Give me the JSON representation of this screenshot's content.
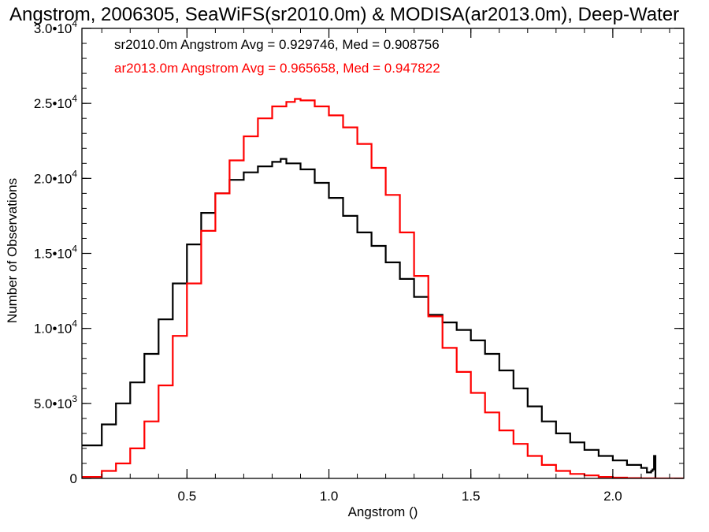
{
  "chart_data": {
    "type": "line",
    "title": "Angstrom, 2006305, SeaWiFS(sr2010.0m) & MODISA(ar2013.0m), Deep-Water",
    "xlabel": "Angstrom ()",
    "ylabel": "Number of Observations",
    "xlim": [
      0.13,
      2.25
    ],
    "ylim": [
      0,
      30000
    ],
    "x_ticks": [
      {
        "value": 0.5,
        "label": "0.5"
      },
      {
        "value": 1.0,
        "label": "1.0"
      },
      {
        "value": 1.5,
        "label": "1.5"
      },
      {
        "value": 2.0,
        "label": "2.0"
      }
    ],
    "y_ticks": [
      {
        "value": 0,
        "mantissa": "0",
        "exponent": ""
      },
      {
        "value": 5000,
        "mantissa": "5.0•10",
        "exponent": "3"
      },
      {
        "value": 10000,
        "mantissa": "1.0•10",
        "exponent": "4"
      },
      {
        "value": 15000,
        "mantissa": "1.5•10",
        "exponent": "4"
      },
      {
        "value": 20000,
        "mantissa": "2.0•10",
        "exponent": "4"
      },
      {
        "value": 25000,
        "mantissa": "2.5•10",
        "exponent": "4"
      },
      {
        "value": 30000,
        "mantissa": "3.0•10",
        "exponent": "4"
      }
    ],
    "annotations": [
      {
        "text": "sr2010.0m Angstrom Avg = 0.929746, Med = 0.908756",
        "color": "#000000"
      },
      {
        "text": "ar2013.0m Angstrom Avg = 0.965658, Med = 0.947822",
        "color": "#ff0000"
      }
    ],
    "series": [
      {
        "color": "#000000",
        "style": "step",
        "x": [
          0.13,
          0.2,
          0.25,
          0.3,
          0.35,
          0.4,
          0.45,
          0.5,
          0.55,
          0.6,
          0.65,
          0.7,
          0.75,
          0.8,
          0.83,
          0.85,
          0.9,
          0.95,
          1.0,
          1.05,
          1.1,
          1.15,
          1.2,
          1.25,
          1.3,
          1.35,
          1.4,
          1.45,
          1.5,
          1.55,
          1.6,
          1.65,
          1.7,
          1.75,
          1.8,
          1.85,
          1.9,
          1.95,
          2.0,
          2.05,
          2.1,
          2.12,
          2.135,
          2.14,
          2.145,
          2.15
        ],
        "y": [
          2200,
          3600,
          5000,
          6400,
          8300,
          10600,
          13000,
          15600,
          17700,
          19000,
          19900,
          20400,
          20800,
          21100,
          21300,
          21000,
          20600,
          19700,
          18700,
          17500,
          16400,
          15500,
          14400,
          13300,
          12100,
          10900,
          10400,
          9900,
          9200,
          8300,
          7200,
          6000,
          4800,
          3800,
          3000,
          2400,
          1900,
          1500,
          1200,
          900,
          700,
          400,
          500,
          600,
          1500,
          0
        ]
      },
      {
        "color": "#ff0000",
        "style": "step",
        "x": [
          0.13,
          0.2,
          0.25,
          0.3,
          0.35,
          0.4,
          0.45,
          0.5,
          0.55,
          0.6,
          0.65,
          0.7,
          0.75,
          0.8,
          0.85,
          0.88,
          0.9,
          0.95,
          1.0,
          1.05,
          1.1,
          1.15,
          1.2,
          1.25,
          1.3,
          1.35,
          1.4,
          1.45,
          1.5,
          1.55,
          1.6,
          1.65,
          1.7,
          1.75,
          1.8,
          1.85,
          1.9,
          1.95,
          2.0,
          2.05,
          2.1,
          2.15,
          2.2,
          2.25
        ],
        "y": [
          100,
          500,
          1000,
          2000,
          3800,
          6200,
          9500,
          13000,
          16500,
          19000,
          21200,
          22800,
          24000,
          24800,
          25100,
          25300,
          25200,
          24800,
          24200,
          23400,
          22300,
          20700,
          18900,
          16400,
          13500,
          10800,
          8700,
          7100,
          5700,
          4400,
          3200,
          2300,
          1500,
          900,
          500,
          300,
          200,
          100,
          50,
          20,
          10,
          0,
          0,
          0
        ]
      }
    ]
  }
}
